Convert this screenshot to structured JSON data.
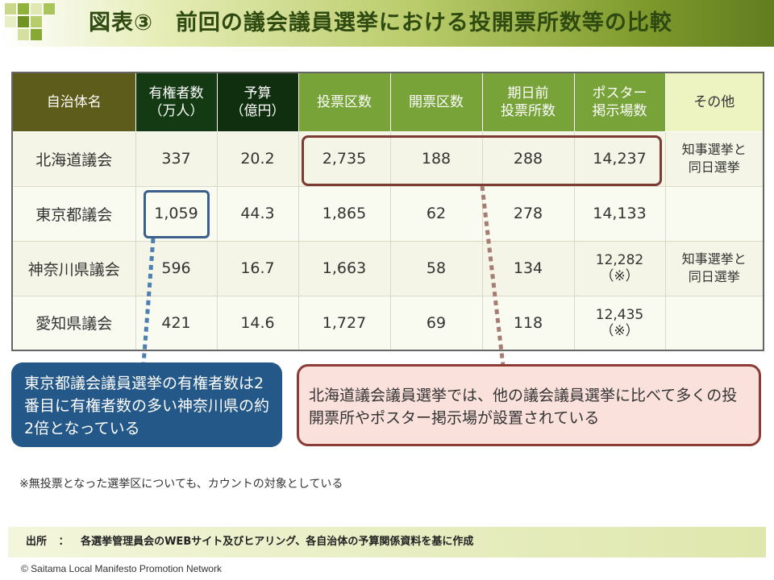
{
  "header": {
    "title": "図表③　前回の議会議員選挙における投開票所数等の比較"
  },
  "table": {
    "headers": {
      "name": "自治体名",
      "voters_line1": "有権者数",
      "voters_line2": "（万人）",
      "budget_line1": "予算",
      "budget_line2": "（億円）",
      "voting_districts": "投票区数",
      "counting_districts": "開票区数",
      "early_line1": "期日前",
      "early_line2": "投票所数",
      "poster_line1": "ポスター",
      "poster_line2": "掲示場数",
      "other": "その他"
    },
    "rows": [
      {
        "name": "北海道議会",
        "voters": "337",
        "budget": "20.2",
        "voting_districts": "2,735",
        "counting_districts": "188",
        "early": "288",
        "poster_line1": "14,237",
        "poster_line2": "",
        "other_line1": "知事選挙と",
        "other_line2": "同日選挙"
      },
      {
        "name": "東京都議会",
        "voters": "1,059",
        "budget": "44.3",
        "voting_districts": "1,865",
        "counting_districts": "62",
        "early": "278",
        "poster_line1": "14,133",
        "poster_line2": "",
        "other_line1": "",
        "other_line2": ""
      },
      {
        "name": "神奈川県議会",
        "voters": "596",
        "budget": "16.7",
        "voting_districts": "1,663",
        "counting_districts": "58",
        "early": "134",
        "poster_line1": "12,282",
        "poster_line2": "（※）",
        "other_line1": "知事選挙と",
        "other_line2": "同日選挙"
      },
      {
        "name": "愛知県議会",
        "voters": "421",
        "budget": "14.6",
        "voting_districts": "1,727",
        "counting_districts": "69",
        "early": "118",
        "poster_line1": "12,435",
        "poster_line2": "（※）",
        "other_line1": "",
        "other_line2": ""
      }
    ]
  },
  "callouts": {
    "tokyo": "東京都議会議員選挙の有権者数は2番目に有権者数の多い神奈川県の約2倍となっている",
    "hokkaido": "北海道議会議員選挙では、他の議会議員選挙に比べて多くの投開票所やポスター掲示場が設置されている"
  },
  "footnote": "※無投票となった選挙区についても、カウントの対象としている",
  "source": {
    "label": "出所",
    "separator": "：",
    "text": "各選挙管理員会のWEBサイト及びヒアリング、各自治体の予算関係資料を基に作成"
  },
  "copyright": "© Saitama Local Manifesto Promotion Network",
  "colors": {
    "header_dark": "#5d5c1a",
    "header_green": "#77a338",
    "header_light": "#eef3c2",
    "callout_blue": "#245888",
    "callout_pink": "#fbe1dc",
    "accent_brown": "#7b3b32"
  }
}
